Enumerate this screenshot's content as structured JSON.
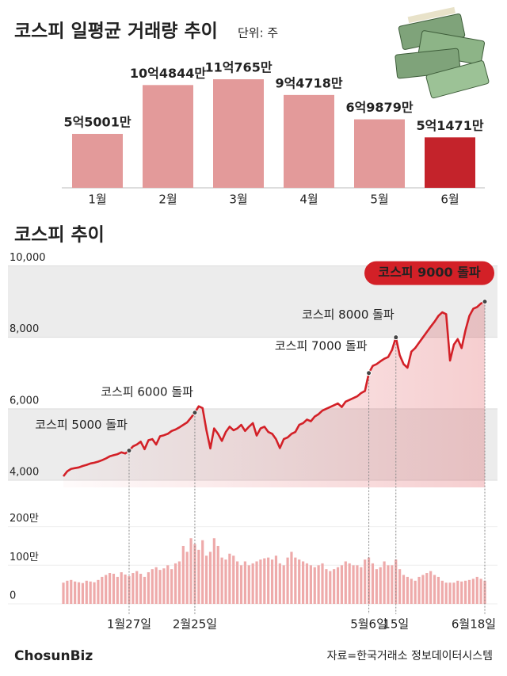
{
  "chart_data": [
    {
      "type": "bar",
      "title": "코스피 일평균 거래량 추이",
      "unit": "단위: 주",
      "categories": [
        "1월",
        "2월",
        "3월",
        "4월",
        "5월",
        "6월"
      ],
      "values": [
        550010000,
        1048440000,
        1107650000,
        947180000,
        698790000,
        514710000
      ],
      "value_labels": [
        "5억5001만",
        "10억4844만",
        "11억765만",
        "9억4718만",
        "6억9879만",
        "5억1471만"
      ],
      "colors": [
        "#e39a9a",
        "#e39a9a",
        "#e39a9a",
        "#e39a9a",
        "#e39a9a",
        "#c4232b"
      ]
    },
    {
      "type": "line",
      "title": "코스피 추이",
      "color": "#d32027",
      "categories": [
        null,
        null,
        null,
        null,
        null,
        null,
        null,
        null,
        null,
        null,
        null,
        null,
        null,
        null,
        null,
        null,
        null,
        "1월27일",
        null,
        null,
        null,
        null,
        null,
        null,
        null,
        null,
        null,
        null,
        null,
        null,
        null,
        null,
        null,
        null,
        "2월25일",
        null,
        null,
        null,
        null,
        null,
        null,
        null,
        null,
        null,
        null,
        null,
        null,
        null,
        null,
        null,
        null,
        null,
        null,
        null,
        null,
        null,
        null,
        null,
        null,
        null,
        null,
        null,
        null,
        null,
        null,
        null,
        null,
        null,
        null,
        null,
        null,
        null,
        null,
        null,
        null,
        null,
        null,
        null,
        null,
        "5월6일",
        null,
        null,
        null,
        null,
        null,
        null,
        "15일",
        null,
        null,
        null,
        null,
        null,
        null,
        null,
        null,
        null,
        null,
        null,
        null,
        null,
        null,
        null,
        null,
        null,
        null,
        null,
        null,
        null,
        null,
        "6월18일"
      ],
      "values": [
        4110,
        4250,
        4320,
        4340,
        4360,
        4400,
        4430,
        4470,
        4490,
        4520,
        4560,
        4610,
        4670,
        4700,
        4730,
        4780,
        4750,
        4830,
        4950,
        5000,
        5080,
        4870,
        5120,
        5150,
        5000,
        5230,
        5260,
        5300,
        5380,
        5420,
        5480,
        5550,
        5620,
        5750,
        5890,
        6070,
        6020,
        5400,
        4890,
        5450,
        5300,
        5100,
        5350,
        5500,
        5400,
        5450,
        5550,
        5380,
        5500,
        5600,
        5250,
        5450,
        5500,
        5350,
        5300,
        5150,
        4900,
        5150,
        5200,
        5300,
        5350,
        5550,
        5600,
        5700,
        5650,
        5780,
        5850,
        5950,
        6000,
        6050,
        6100,
        6150,
        6050,
        6200,
        6250,
        6300,
        6350,
        6440,
        6500,
        7000,
        7200,
        7250,
        7330,
        7400,
        7450,
        7650,
        8000,
        7500,
        7250,
        7150,
        7600,
        7700,
        7850,
        8000,
        8150,
        8300,
        8440,
        8600,
        8700,
        8650,
        7350,
        7800,
        7950,
        7700,
        8200,
        8600,
        8800,
        8850,
        8950,
        9000
      ],
      "ylim": [
        3800,
        10300
      ],
      "yticks": [
        {
          "value": 4000,
          "label": "4,000"
        },
        {
          "value": 6000,
          "label": "6,000"
        },
        {
          "value": 8000,
          "label": "8,000"
        },
        {
          "value": 10000,
          "label": "10,000"
        }
      ],
      "annotations": [
        {
          "text": "코스피 5000 돌파",
          "x": "1월27일"
        },
        {
          "text": "코스피 6000 돌파",
          "x": "2월25일"
        },
        {
          "text": "코스피 7000 돌파",
          "x": "5월6일"
        },
        {
          "text": "코스피 8000 돌파",
          "x": "15일"
        },
        {
          "text": "코스피 9000 돌파",
          "x": "6월18일"
        }
      ],
      "volume": {
        "color": "#eeaaaa",
        "ylim": [
          0,
          2300000
        ],
        "yticks": [
          0,
          {
            "value": 1000000,
            "label": "100만"
          },
          {
            "value": 2000000,
            "label": "200만"
          }
        ],
        "values": [
          550000,
          600000,
          620000,
          580000,
          560000,
          540000,
          600000,
          580000,
          560000,
          620000,
          700000,
          750000,
          800000,
          780000,
          700000,
          820000,
          760000,
          720000,
          800000,
          850000,
          780000,
          700000,
          820000,
          900000,
          950000,
          880000,
          920000,
          1000000,
          900000,
          1050000,
          1100000,
          1500000,
          1350000,
          1700000,
          1550000,
          1400000,
          1650000,
          1250000,
          1350000,
          1700000,
          1500000,
          1200000,
          1150000,
          1300000,
          1250000,
          1100000,
          1000000,
          1100000,
          1000000,
          1050000,
          1100000,
          1150000,
          1180000,
          1200000,
          1150000,
          1250000,
          1050000,
          1000000,
          1200000,
          1350000,
          1200000,
          1150000,
          1100000,
          1050000,
          1000000,
          950000,
          1000000,
          1050000,
          900000,
          850000,
          900000,
          950000,
          1000000,
          1100000,
          1050000,
          1000000,
          1000000,
          950000,
          1150000,
          1200000,
          1050000,
          900000,
          950000,
          1100000,
          1000000,
          1000000,
          1150000,
          900000,
          750000,
          700000,
          650000,
          600000,
          700000,
          750000,
          800000,
          850000,
          750000,
          700000,
          600000,
          550000,
          550000,
          550000,
          600000,
          580000,
          600000,
          620000,
          650000,
          700000,
          650000,
          600000
        ]
      }
    }
  ],
  "footer": {
    "logo": "ChosunBiz",
    "source": "자료=한국거래소 정보데이터시스템"
  }
}
